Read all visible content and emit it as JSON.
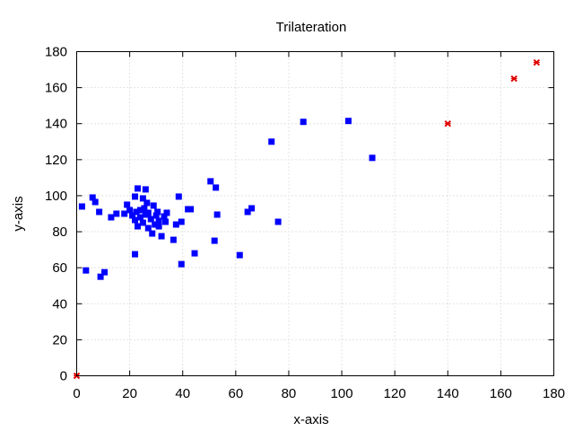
{
  "chart_data": {
    "type": "scatter",
    "title": "Trilateration",
    "xlabel": "x-axis",
    "ylabel": "y-axis",
    "xlim": [
      0,
      180
    ],
    "ylim": [
      0,
      180
    ],
    "xticks": [
      0,
      20,
      40,
      60,
      80,
      100,
      120,
      140,
      160,
      180
    ],
    "yticks": [
      0,
      20,
      40,
      60,
      80,
      100,
      120,
      140,
      160,
      180
    ],
    "grid": true,
    "series": [
      {
        "marker": "square",
        "color": "#0000ff",
        "points": [
          [
            2,
            94
          ],
          [
            3.5,
            58.5
          ],
          [
            6,
            99
          ],
          [
            7,
            96.5
          ],
          [
            8.5,
            91
          ],
          [
            9,
            55
          ],
          [
            10.5,
            57.5
          ],
          [
            13,
            88
          ],
          [
            15,
            90
          ],
          [
            18,
            90
          ],
          [
            19,
            95
          ],
          [
            20,
            92
          ],
          [
            21,
            89
          ],
          [
            22,
            86.5
          ],
          [
            22,
            99.5
          ],
          [
            22,
            67.5
          ],
          [
            22.5,
            91
          ],
          [
            23,
            104
          ],
          [
            23,
            83
          ],
          [
            24,
            92
          ],
          [
            24,
            88
          ],
          [
            25,
            98.5
          ],
          [
            25,
            85
          ],
          [
            25.5,
            93
          ],
          [
            26,
            103.5
          ],
          [
            26,
            89.5
          ],
          [
            26.5,
            96
          ],
          [
            27,
            82
          ],
          [
            27,
            90.5
          ],
          [
            28,
            87
          ],
          [
            28.5,
            79
          ],
          [
            29,
            94.5
          ],
          [
            29.5,
            84
          ],
          [
            30,
            89
          ],
          [
            30.5,
            91
          ],
          [
            31,
            86
          ],
          [
            31,
            83
          ],
          [
            32,
            77.5
          ],
          [
            33,
            88.5
          ],
          [
            33.5,
            85.5
          ],
          [
            34,
            90.5
          ],
          [
            36.5,
            75.5
          ],
          [
            37.5,
            84
          ],
          [
            38.5,
            99.5
          ],
          [
            39.5,
            85.5
          ],
          [
            39.5,
            62
          ],
          [
            42,
            92.5
          ],
          [
            43,
            92.5
          ],
          [
            44.5,
            68
          ],
          [
            50.5,
            108
          ],
          [
            52,
            75
          ],
          [
            52.5,
            104.5
          ],
          [
            53,
            89.5
          ],
          [
            61.5,
            67
          ],
          [
            64.5,
            91
          ],
          [
            66,
            93
          ],
          [
            73.5,
            130
          ],
          [
            76,
            85.5
          ],
          [
            85.5,
            141
          ],
          [
            102.5,
            141.5
          ],
          [
            111.5,
            121
          ]
        ]
      },
      {
        "marker": "cross",
        "color": "#e00000",
        "points": [
          [
            0,
            0
          ],
          [
            140,
            140
          ],
          [
            165,
            165
          ],
          [
            173.5,
            174
          ]
        ]
      }
    ]
  }
}
